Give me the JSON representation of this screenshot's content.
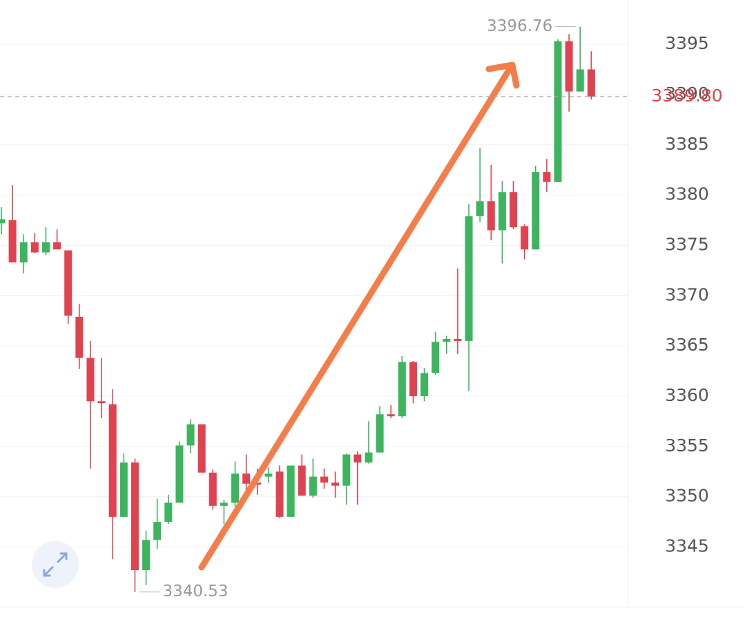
{
  "chart_data": {
    "type": "candlestick",
    "up_color": "#3cb55e",
    "down_color": "#e0434f",
    "ylim": [
      3339,
      3399.4
    ],
    "yticks": [
      3345,
      3350,
      3355,
      3360,
      3365,
      3370,
      3375,
      3380,
      3385,
      3390,
      3395
    ],
    "grid": true,
    "open": [
      3377.2,
      3377.5,
      3373.3,
      3375.3,
      3374.3,
      3375.3,
      3374.5,
      3367.9,
      3363.8,
      3359.5,
      3359.2,
      3348.0,
      3353.4,
      3342.7,
      3345.7,
      3347.5,
      3349.4,
      3355.1,
      3357.2,
      3352.4,
      3349.1,
      3349.4,
      3352.3,
      3351.4,
      3352.0,
      3352.5,
      3348.0,
      3353.1,
      3350.1,
      3352.0,
      3351.4,
      3351.1,
      3354.2,
      3353.4,
      3354.4,
      3358.2,
      3358.0,
      3363.4,
      3360.0,
      3362.3,
      3365.4,
      3365.7,
      3365.5,
      3377.9,
      3379.4,
      3376.5,
      3380.3,
      3376.9,
      3374.6,
      3382.3,
      3381.3,
      3395.3,
      3390.3,
      3392.5
    ],
    "high": [
      3378.8,
      3381.0,
      3376.1,
      3376.2,
      3376.8,
      3376.6,
      3374.5,
      3369.2,
      3365.5,
      3363.8,
      3360.7,
      3354.3,
      3353.8,
      3346.6,
      3349.8,
      3350.2,
      3355.5,
      3357.7,
      3357.2,
      3352.7,
      3349.7,
      3353.5,
      3354.2,
      3352.8,
      3352.9,
      3353.1,
      3353.1,
      3354.2,
      3353.8,
      3352.8,
      3352.5,
      3354.3,
      3354.5,
      3357.5,
      3359.0,
      3359.1,
      3364.0,
      3363.5,
      3362.8,
      3366.4,
      3366.0,
      3372.7,
      3379.1,
      3384.7,
      3383.0,
      3381.4,
      3381.4,
      3377.1,
      3382.9,
      3383.6,
      3395.5,
      3396.0,
      3396.76,
      3394.3
    ],
    "low": [
      3376.1,
      3373.3,
      3372.2,
      3374.2,
      3374.0,
      3374.6,
      3367.2,
      3362.7,
      3352.8,
      3357.8,
      3343.8,
      3348.0,
      3340.53,
      3341.2,
      3344.8,
      3347.3,
      3349.4,
      3354.3,
      3352.4,
      3348.7,
      3347.3,
      3349.0,
      3350.1,
      3350.2,
      3351.4,
      3347.9,
      3348.0,
      3350.1,
      3349.9,
      3350.8,
      3349.9,
      3349.2,
      3349.2,
      3353.3,
      3354.4,
      3357.8,
      3357.8,
      3359.3,
      3359.5,
      3362.1,
      3364.2,
      3364.2,
      3360.5,
      3377.3,
      3375.5,
      3373.2,
      3376.6,
      3373.6,
      3374.6,
      3380.3,
      3381.3,
      3388.3,
      3390.3,
      3389.5
    ],
    "close": [
      3377.6,
      3373.3,
      3375.3,
      3374.3,
      3375.3,
      3374.6,
      3368.0,
      3363.8,
      3359.5,
      3359.3,
      3348.0,
      3353.4,
      3342.7,
      3345.7,
      3347.5,
      3349.4,
      3355.1,
      3357.2,
      3352.4,
      3349.1,
      3349.4,
      3352.3,
      3351.3,
      3351.2,
      3352.3,
      3348.0,
      3353.1,
      3350.1,
      3352.0,
      3351.4,
      3351.1,
      3354.2,
      3353.4,
      3354.4,
      3358.2,
      3358.0,
      3363.4,
      3360.0,
      3362.3,
      3365.4,
      3365.7,
      3365.5,
      3377.9,
      3379.4,
      3376.5,
      3380.3,
      3376.8,
      3374.6,
      3382.3,
      3381.3,
      3395.3,
      3390.3,
      3392.5,
      3389.8
    ],
    "last_price": {
      "value": 3389.8,
      "label": "3389.80"
    }
  }
}
